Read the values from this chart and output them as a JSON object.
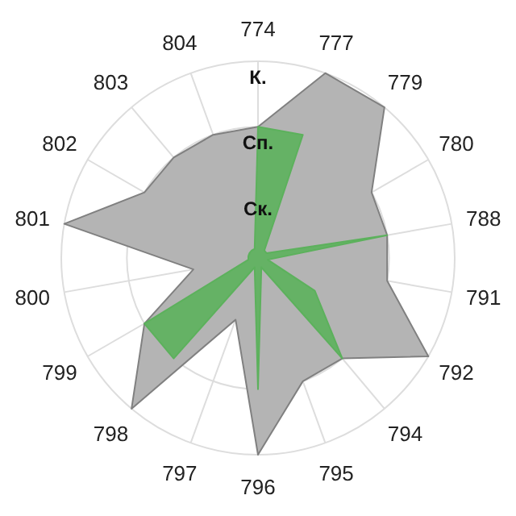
{
  "chart_data": {
    "type": "radar",
    "categories": [
      "774",
      "777",
      "779",
      "780",
      "788",
      "791",
      "792",
      "794",
      "795",
      "796",
      "797",
      "798",
      "799",
      "800",
      "801",
      "802",
      "803",
      "804"
    ],
    "ylim": [
      0,
      3
    ],
    "yticks": [
      {
        "value": 1,
        "label": "Ск."
      },
      {
        "value": 2,
        "label": "Сп."
      },
      {
        "value": 3,
        "label": "К."
      }
    ],
    "grid": true,
    "series": [
      {
        "color": "#b4b4b4",
        "values": [
          2,
          3,
          3,
          2,
          2,
          2,
          3,
          2,
          2,
          3,
          1,
          3,
          2,
          1,
          3,
          2,
          2,
          2
        ]
      },
      {
        "color": "#5cb15c",
        "values": [
          2,
          2,
          0.15,
          0.15,
          2,
          0.15,
          1,
          2,
          0.15,
          2,
          0.15,
          2,
          2,
          0.15,
          0.15,
          0.15,
          0.15,
          0.15
        ]
      }
    ]
  }
}
